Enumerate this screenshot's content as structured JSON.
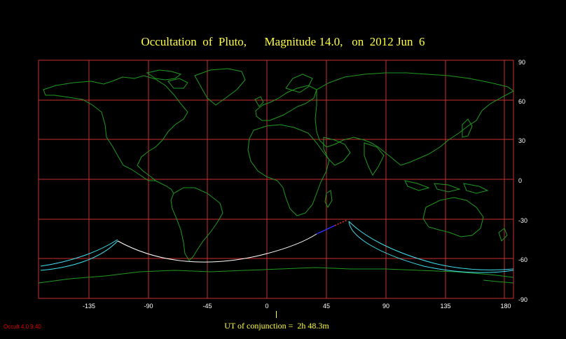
{
  "title": "Occultation  of  Pluto,      Magnitude 14.0,   on  2012 Jun  6",
  "x_ticks": [
    "-135",
    "-90",
    "-45",
    "0",
    "45",
    "90",
    "135",
    "180"
  ],
  "y_ticks": [
    "90",
    "60",
    "30",
    "0",
    "-30",
    "-60",
    "-90"
  ],
  "conjunction_label": "UT of conjunction =  2h 48.3m",
  "version": "Occult 4.0.9.40",
  "colors": {
    "background": "#000000",
    "grid": "#c83030",
    "coast": "#1f9a1f",
    "title": "#ffff40",
    "central_line": "#ffffff",
    "limit_lines": "#40e0f0",
    "daylight_segment": "#3030ff",
    "dotted_segment": "#ff3030",
    "version": "#e00000"
  }
}
